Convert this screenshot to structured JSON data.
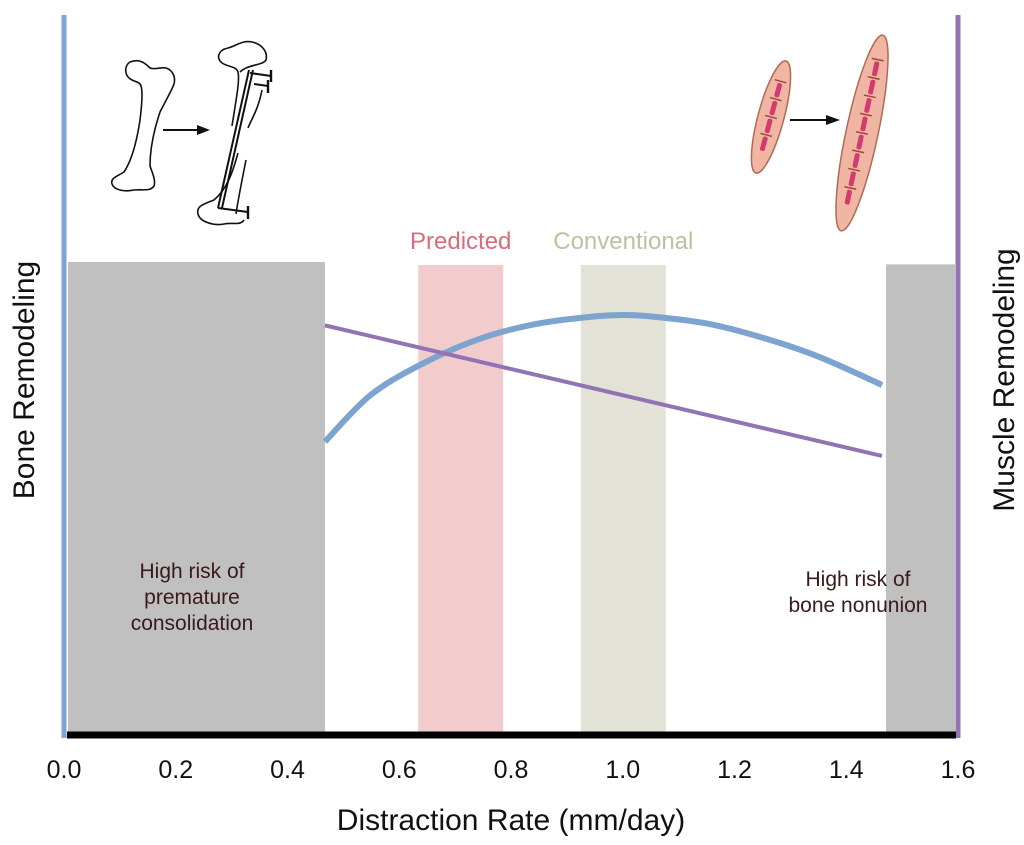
{
  "chart_data": {
    "type": "line",
    "title": "",
    "xlabel": "Distraction Rate (mm/day)",
    "ylabel_left": "Bone Remodeling",
    "ylabel_right": "Muscle Remodeling",
    "xlim": [
      0.0,
      1.6
    ],
    "ylim": [
      0,
      1
    ],
    "grid": false,
    "x_ticks": [
      "0.0",
      "0.2",
      "0.4",
      "0.6",
      "0.8",
      "1.0",
      "1.2",
      "1.4",
      "1.6"
    ],
    "x_tick_values": [
      0.0,
      0.2,
      0.4,
      0.6,
      0.8,
      1.0,
      1.2,
      1.4,
      1.6
    ],
    "regions": [
      {
        "name": "premature-consolidation",
        "x": [
          0.0,
          0.467
        ],
        "top": 1.0,
        "color": "#c0c0c0",
        "label": [
          "High risk of",
          "premature",
          "consolidation"
        ],
        "label_color": "#3a1a1a"
      },
      {
        "name": "bone-nonunion",
        "x": [
          1.464,
          1.6
        ],
        "top": 0.995,
        "color": "#c0c0c0",
        "label": [
          "High risk of",
          "bone nonunion"
        ],
        "label_color": "#3a1a1a"
      }
    ],
    "bands": [
      {
        "name": "predicted",
        "label": "Predicted",
        "x": [
          0.634,
          0.786
        ],
        "color": "#f2cccc",
        "label_color": "#d96b7b"
      },
      {
        "name": "conventional",
        "label": "Conventional",
        "x": [
          0.925,
          1.077
        ],
        "color": "#e2e3d6",
        "label_color": "#b9c2a2"
      }
    ],
    "series": [
      {
        "name": "Bone Remodeling",
        "axis": "left",
        "color": "#7da3cf",
        "x": [
          0.467,
          0.55,
          0.65,
          0.75,
          0.85,
          0.95,
          1.0,
          1.05,
          1.15,
          1.25,
          1.35,
          1.464
        ],
        "y": [
          0.62,
          0.72,
          0.79,
          0.84,
          0.87,
          0.885,
          0.888,
          0.885,
          0.87,
          0.84,
          0.8,
          0.74
        ]
      },
      {
        "name": "Muscle Remodeling",
        "axis": "right",
        "color": "#9273b3",
        "x": [
          0.467,
          1.464
        ],
        "y": [
          0.866,
          0.59
        ]
      }
    ],
    "axis_colors": {
      "left": "#7da3cf",
      "right": "#9273b3",
      "bottom": "#000000"
    },
    "illustrations": {
      "left": "bone-lengthening-icon",
      "right": "muscle-lengthening-icon"
    }
  }
}
